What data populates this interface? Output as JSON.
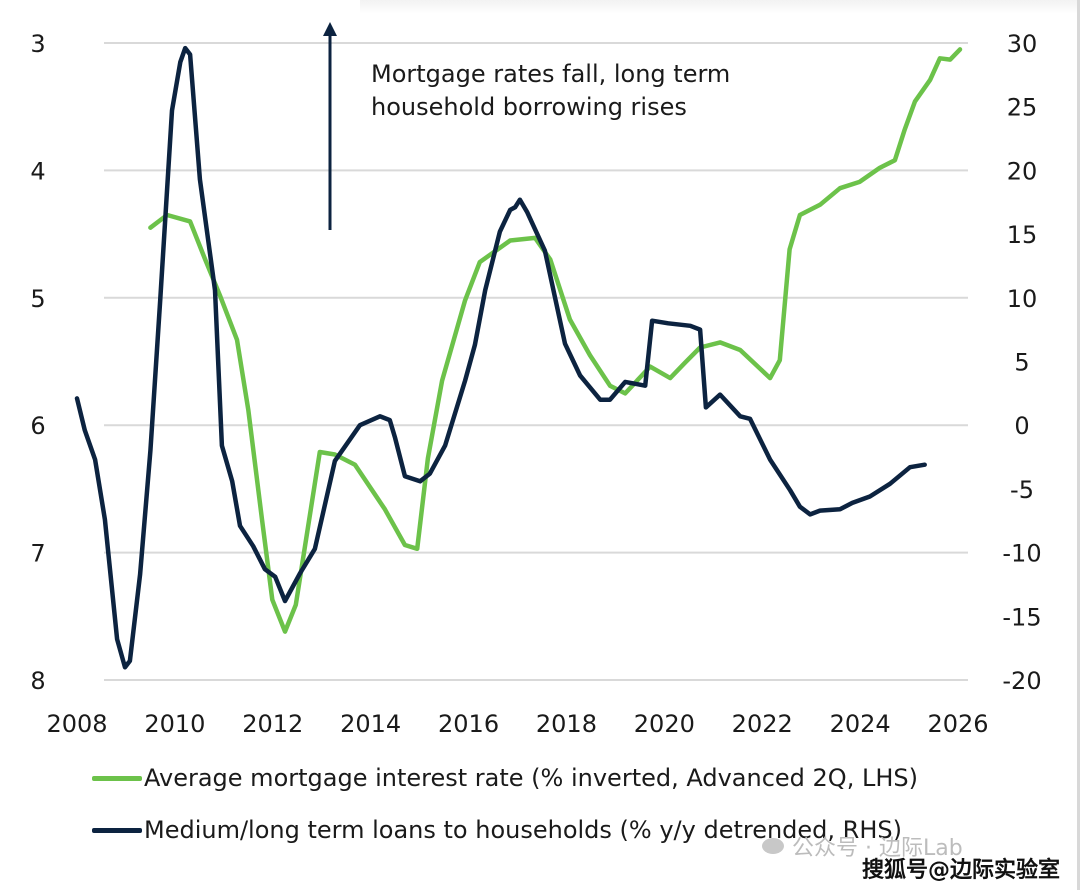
{
  "chart_data": {
    "type": "line",
    "title": "",
    "annotation": [
      "Mortgage rates fall, long term",
      "household borrowing rises"
    ],
    "xlabel": "",
    "xlim": [
      2008,
      2026
    ],
    "x_ticks": [
      "2008",
      "2010",
      "2012",
      "2014",
      "2016",
      "2018",
      "2020",
      "2022",
      "2024",
      "2026"
    ],
    "y_left": {
      "label": "",
      "inverted": true,
      "lim": [
        3,
        8
      ],
      "ticks": [
        "3",
        "4",
        "5",
        "6",
        "7",
        "8"
      ]
    },
    "y_right": {
      "label": "",
      "lim": [
        -20,
        30
      ],
      "ticks": [
        "30",
        "25",
        "20",
        "15",
        "10",
        "5",
        "0",
        "-5",
        "-10",
        "-15",
        "-20"
      ]
    },
    "grid": true,
    "legend_position": "bottom",
    "series": [
      {
        "name": "Average mortgage interest rate (% inverted, Advanced 2Q, LHS)",
        "axis": "left",
        "color": "#6cc24a",
        "x": [
          2009.5,
          2009.84,
          2010.31,
          2010.62,
          2010.92,
          2011.27,
          2011.5,
          2011.78,
          2011.99,
          2012.25,
          2012.47,
          2012.96,
          2013.27,
          2013.68,
          2014.29,
          2014.7,
          2014.95,
          2015.17,
          2015.46,
          2015.93,
          2016.23,
          2016.85,
          2017.36,
          2017.67,
          2018.07,
          2018.48,
          2018.89,
          2019.2,
          2019.71,
          2020.12,
          2020.42,
          2020.73,
          2021.14,
          2021.55,
          2022.16,
          2022.36,
          2022.56,
          2022.77,
          2023.18,
          2023.59,
          2023.99,
          2024.4,
          2024.71,
          2024.91,
          2025.12,
          2025.43,
          2025.63,
          2025.84,
          2026.04
        ],
        "values": [
          4.45,
          4.35,
          4.4,
          4.7,
          4.98,
          5.33,
          5.88,
          6.74,
          7.37,
          7.62,
          7.41,
          6.21,
          6.23,
          6.31,
          6.66,
          6.94,
          6.97,
          6.26,
          5.65,
          5.02,
          4.72,
          4.55,
          4.53,
          4.7,
          5.17,
          5.45,
          5.69,
          5.75,
          5.54,
          5.63,
          5.51,
          5.39,
          5.35,
          5.41,
          5.63,
          5.49,
          4.62,
          4.35,
          4.27,
          4.14,
          4.09,
          3.98,
          3.92,
          3.68,
          3.46,
          3.29,
          3.12,
          3.13,
          3.05
        ]
      },
      {
        "name": "Medium/long term loans to households (% y/y detrended, RHS)",
        "axis": "right",
        "color": "#0c2340",
        "x": [
          2008.0,
          2008.16,
          2008.37,
          2008.57,
          2008.82,
          2008.98,
          2009.08,
          2009.29,
          2009.5,
          2009.7,
          2009.94,
          2010.11,
          2010.21,
          2010.31,
          2010.51,
          2010.82,
          2010.96,
          2011.17,
          2011.33,
          2011.6,
          2011.84,
          2012.05,
          2012.25,
          2012.56,
          2012.86,
          2013.27,
          2013.78,
          2014.19,
          2014.39,
          2014.5,
          2014.7,
          2015.01,
          2015.21,
          2015.52,
          2015.93,
          2016.13,
          2016.34,
          2016.64,
          2016.85,
          2016.95,
          2017.05,
          2017.2,
          2017.56,
          2017.97,
          2018.28,
          2018.69,
          2018.89,
          2019.2,
          2019.61,
          2019.75,
          2020.08,
          2020.53,
          2020.73,
          2020.85,
          2021.14,
          2021.55,
          2021.75,
          2022.16,
          2022.57,
          2022.77,
          2022.98,
          2023.18,
          2023.59,
          2023.84,
          2024.2,
          2024.61,
          2025.02,
          2025.32
        ],
        "values": [
          2.1,
          -0.4,
          -2.7,
          -7.4,
          -16.8,
          -19.0,
          -18.5,
          -11.7,
          -2.0,
          9.8,
          24.7,
          28.5,
          29.6,
          29.1,
          19.3,
          10.6,
          -1.6,
          -4.4,
          -7.9,
          -9.5,
          -11.3,
          -11.9,
          -13.8,
          -11.6,
          -9.7,
          -2.8,
          0.0,
          0.7,
          0.4,
          -1.0,
          -4.0,
          -4.4,
          -3.8,
          -1.6,
          3.5,
          6.3,
          10.6,
          15.2,
          16.9,
          17.1,
          17.7,
          16.7,
          13.7,
          6.4,
          3.9,
          2.0,
          2.0,
          3.4,
          3.1,
          8.2,
          8.0,
          7.8,
          7.5,
          1.4,
          2.4,
          0.7,
          0.5,
          -2.7,
          -5.1,
          -6.4,
          -7.0,
          -6.7,
          -6.6,
          -6.1,
          -5.6,
          -4.6,
          -3.3,
          -3.1
        ]
      }
    ]
  },
  "legend": {
    "items": [
      {
        "label": "Average mortgage interest rate (% inverted, Advanced 2Q, LHS)",
        "color": "#6cc24a"
      },
      {
        "label": "Medium/long term loans to households (% y/y detrended, RHS)",
        "color": "#0c2340"
      }
    ]
  },
  "watermarks": {
    "wechat": "公众号 · 边际Lab",
    "sohu": "搜狐号@边际实验室"
  },
  "colors": {
    "grid": "#d9d9d9",
    "arrow": "#0c2340",
    "text": "#1a1a1a"
  }
}
